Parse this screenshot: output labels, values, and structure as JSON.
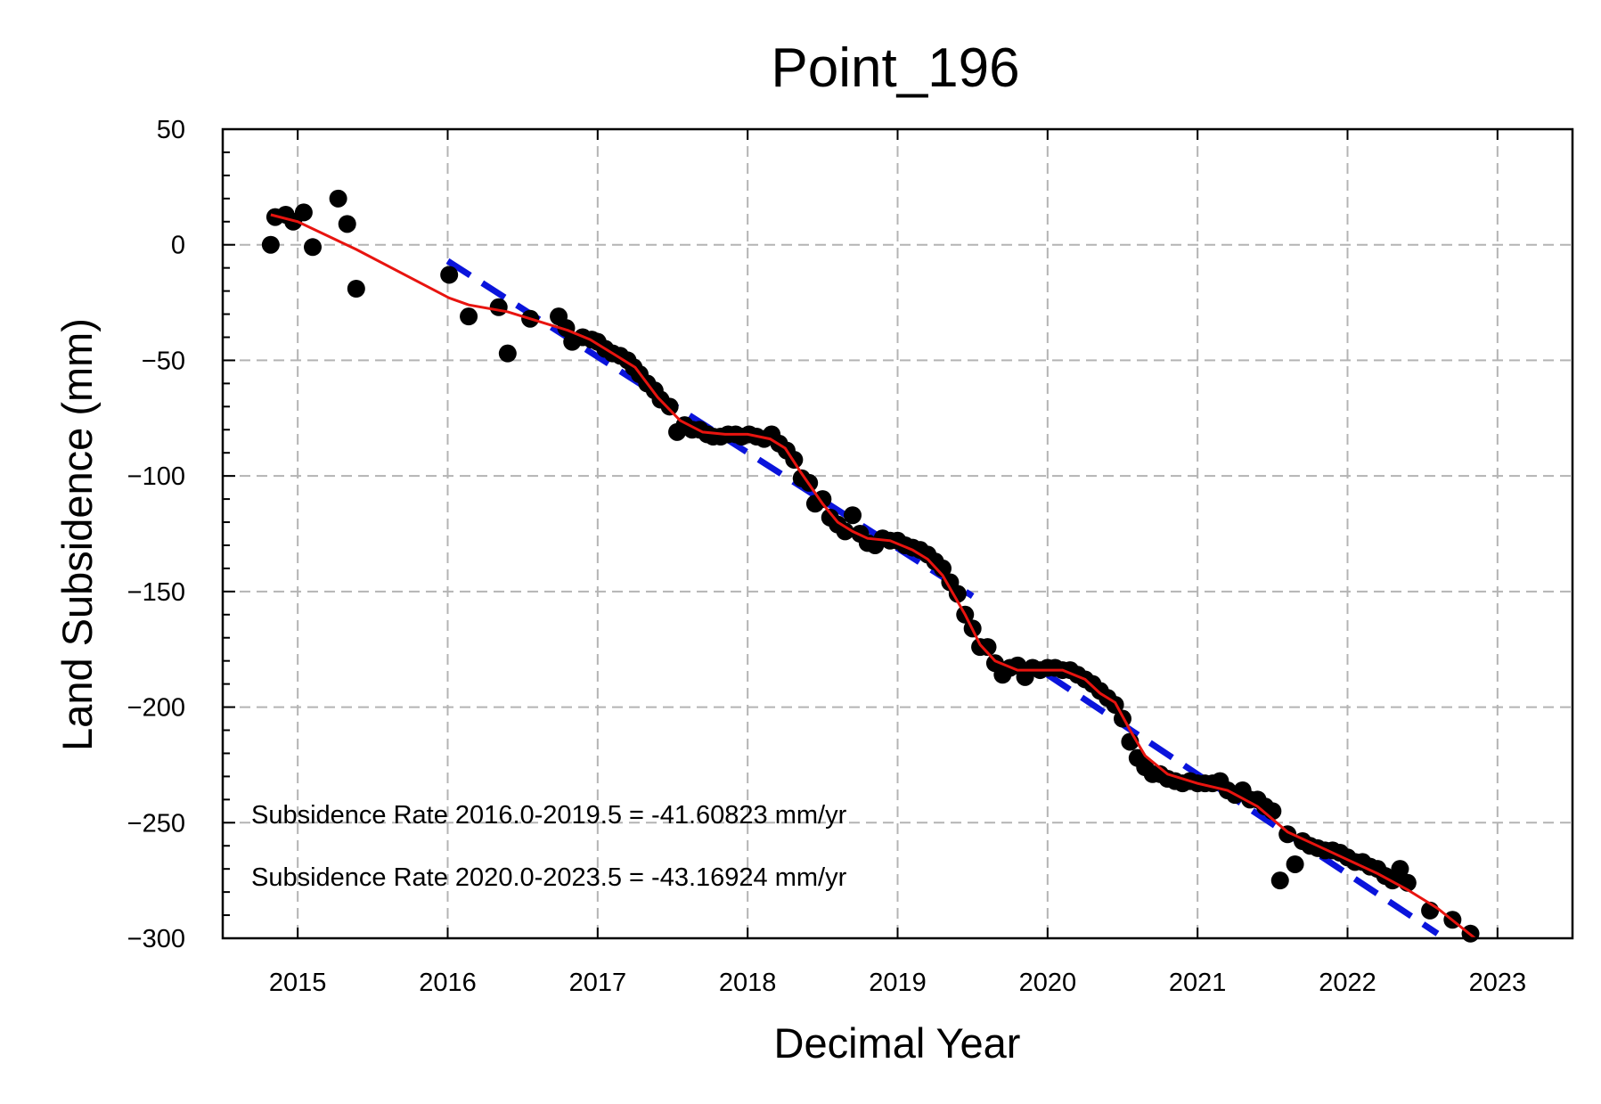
{
  "chart_data": {
    "type": "scatter",
    "title": "Point_196",
    "xlabel": "Decimal Year",
    "ylabel": "Land Subsidence (mm)",
    "xlim": [
      2014.5,
      2023.5
    ],
    "ylim": [
      -300,
      50
    ],
    "xticks": [
      2015,
      2016,
      2017,
      2018,
      2019,
      2020,
      2021,
      2022,
      2023
    ],
    "xtick_labels": [
      "2015",
      "2016",
      "2017",
      "2018",
      "2019",
      "2020",
      "2021",
      "2022",
      "2023"
    ],
    "yticks": [
      50,
      0,
      -50,
      -100,
      -150,
      -200,
      -250,
      -300
    ],
    "ytick_labels": [
      "50",
      "0",
      "−50",
      "−100",
      "−150",
      "−200",
      "−250",
      "−300"
    ],
    "grid": true,
    "annotations": [
      "Subsidence Rate 2016.0-2019.5 = -41.60823 mm/yr",
      "Subsidence Rate 2020.0-2023.5 = -43.16924 mm/yr"
    ],
    "colors": {
      "points": "#000000",
      "smooth": "#e8140f",
      "trend": "#0a14dc",
      "grid": "#b4b4b4"
    },
    "points": {
      "x": [
        2014.82,
        2014.85,
        2014.92,
        2014.97,
        2015.04,
        2015.1,
        2015.27,
        2015.33,
        2015.39,
        2016.01,
        2016.14,
        2016.34,
        2016.4,
        2016.55,
        2016.74,
        2016.79,
        2016.83,
        2016.9,
        2016.96,
        2017.0,
        2017.05,
        2017.1,
        2017.15,
        2017.2,
        2017.24,
        2017.28,
        2017.33,
        2017.38,
        2017.42,
        2017.48,
        2017.53,
        2017.58,
        2017.63,
        2017.68,
        2017.73,
        2017.77,
        2017.82,
        2017.87,
        2017.92,
        2017.96,
        2018.01,
        2018.06,
        2018.11,
        2018.16,
        2018.21,
        2018.26,
        2018.31,
        2018.36,
        2018.41,
        2018.45,
        2018.5,
        2018.55,
        2018.6,
        2018.65,
        2018.7,
        2018.75,
        2018.8,
        2018.85,
        2018.9,
        2018.95,
        2019.0,
        2019.05,
        2019.1,
        2019.15,
        2019.2,
        2019.25,
        2019.3,
        2019.35,
        2019.4,
        2019.45,
        2019.5,
        2019.55,
        2019.6,
        2019.65,
        2019.7,
        2019.75,
        2019.8,
        2019.85,
        2019.9,
        2019.95,
        2020.0,
        2020.05,
        2020.1,
        2020.15,
        2020.2,
        2020.25,
        2020.3,
        2020.35,
        2020.4,
        2020.45,
        2020.5,
        2020.55,
        2020.6,
        2020.65,
        2020.7,
        2020.75,
        2020.8,
        2020.85,
        2020.9,
        2020.95,
        2021.0,
        2021.05,
        2021.1,
        2021.15,
        2021.2,
        2021.25,
        2021.3,
        2021.35,
        2021.4,
        2021.45,
        2021.5,
        2021.55,
        2021.6,
        2021.65,
        2021.7,
        2021.75,
        2021.8,
        2021.85,
        2021.9,
        2021.95,
        2022.0,
        2022.05,
        2022.1,
        2022.15,
        2022.2,
        2022.25,
        2022.3,
        2022.35,
        2022.4,
        2022.55,
        2022.7,
        2022.82
      ],
      "y": [
        0,
        12,
        13,
        10,
        14,
        -1,
        20,
        9,
        -19,
        -13,
        -31,
        -27,
        -47,
        -32,
        -31,
        -36,
        -42,
        -40,
        -41,
        -42,
        -45,
        -47,
        -48,
        -50,
        -53,
        -56,
        -60,
        -63,
        -67,
        -70,
        -81,
        -78,
        -80,
        -80,
        -82,
        -83,
        -83,
        -82,
        -82,
        -83,
        -82,
        -83,
        -84,
        -82,
        -86,
        -89,
        -93,
        -101,
        -103,
        -112,
        -110,
        -118,
        -121,
        -124,
        -117,
        -125,
        -129,
        -130,
        -127,
        -128,
        -128,
        -130,
        -131,
        -132,
        -134,
        -137,
        -140,
        -146,
        -151,
        -160,
        -166,
        -174,
        -174,
        -181,
        -186,
        -183,
        -182,
        -187,
        -183,
        -184,
        -183,
        -183,
        -184,
        -184,
        -186,
        -188,
        -190,
        -193,
        -196,
        -199,
        -205,
        -215,
        -222,
        -226,
        -229,
        -229,
        -231,
        -232,
        -233,
        -232,
        -233,
        -233,
        -233,
        -232,
        -236,
        -238,
        -236,
        -240,
        -240,
        -243,
        -245,
        -275,
        -255,
        -268,
        -258,
        -260,
        -261,
        -262,
        -262,
        -263,
        -265,
        -267,
        -267,
        -269,
        -270,
        -273,
        -275,
        -270,
        -276,
        -288,
        -292,
        -298
      ]
    },
    "smooth_fit": {
      "x": [
        2014.82,
        2015.0,
        2015.39,
        2016.01,
        2016.14,
        2016.4,
        2016.6,
        2016.8,
        2016.95,
        2017.1,
        2017.25,
        2017.4,
        2017.55,
        2017.7,
        2017.85,
        2018.0,
        2018.15,
        2018.25,
        2018.35,
        2018.5,
        2018.6,
        2018.7,
        2018.8,
        2018.95,
        2019.1,
        2019.2,
        2019.3,
        2019.45,
        2019.55,
        2019.65,
        2019.8,
        2019.95,
        2020.1,
        2020.25,
        2020.35,
        2020.45,
        2020.55,
        2020.65,
        2020.8,
        2021.0,
        2021.2,
        2021.4,
        2021.6,
        2021.8,
        2022.0,
        2022.2,
        2022.4,
        2022.6,
        2022.85
      ],
      "y": [
        13,
        10,
        -2,
        -23,
        -26,
        -29,
        -33,
        -37,
        -41,
        -47,
        -53,
        -66,
        -76,
        -81,
        -82,
        -82,
        -84,
        -88,
        -98,
        -112,
        -120,
        -124,
        -127,
        -128,
        -132,
        -136,
        -143,
        -160,
        -173,
        -180,
        -184,
        -184,
        -184,
        -188,
        -194,
        -198,
        -210,
        -221,
        -229,
        -233,
        -236,
        -243,
        -254,
        -260,
        -266,
        -272,
        -279,
        -287,
        -300
      ]
    },
    "trends": [
      {
        "x": [
          2016.0,
          2019.5
        ],
        "y": [
          -7,
          -152
        ]
      },
      {
        "x": [
          2020.0,
          2022.6
        ],
        "y": [
          -186,
          -298
        ]
      }
    ]
  }
}
